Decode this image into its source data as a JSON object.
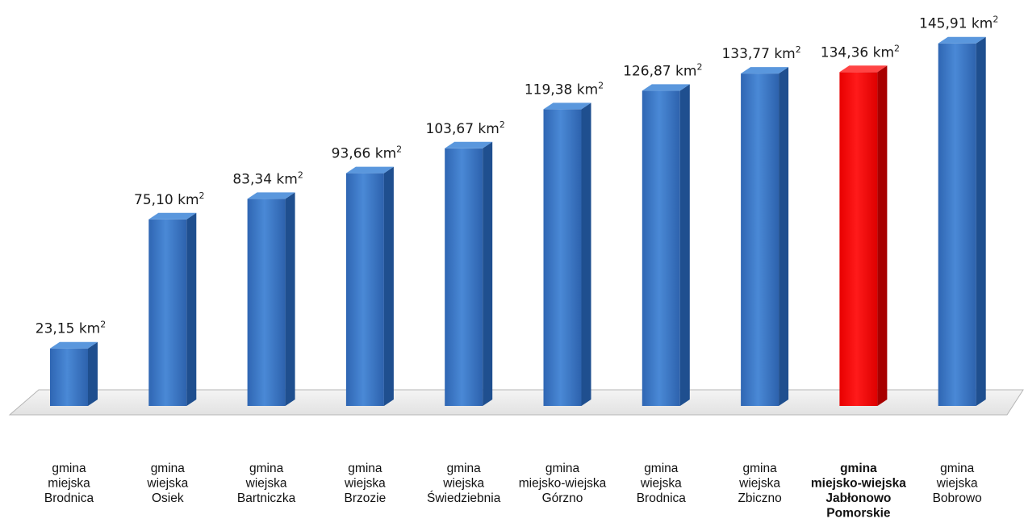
{
  "chart_data": {
    "type": "bar",
    "unit": "km",
    "unit_superscript": "2",
    "categories": [
      [
        "gmina",
        "miejska",
        "Brodnica"
      ],
      [
        "gmina",
        "wiejska",
        "Osiek"
      ],
      [
        "gmina",
        "wiejska",
        "Bartniczka"
      ],
      [
        "gmina",
        "wiejska",
        "Brzozie"
      ],
      [
        "gmina",
        "wiejska",
        "Świedziebnia"
      ],
      [
        "gmina",
        "miejsko-wiejska",
        "Górzno"
      ],
      [
        "gmina",
        "wiejska",
        "Brodnica"
      ],
      [
        "gmina",
        "wiejska",
        "Zbiczno"
      ],
      [
        "gmina",
        "miejsko-wiejska",
        "Jabłonowo",
        "Pomorskie"
      ],
      [
        "gmina",
        "wiejska",
        "Bobrowo"
      ]
    ],
    "values": [
      23.15,
      75.1,
      83.34,
      93.66,
      103.67,
      119.38,
      126.87,
      133.77,
      134.36,
      145.91
    ],
    "value_labels": [
      "23,15",
      "75,10",
      "83,34",
      "93,66",
      "103,67",
      "119,38",
      "126,87",
      "133,77",
      "134,36",
      "145,91"
    ],
    "highlight_index": 8,
    "colors": {
      "bar": "#3a78c8",
      "highlight": "#ff0000"
    },
    "grid": false,
    "legend": "none"
  }
}
